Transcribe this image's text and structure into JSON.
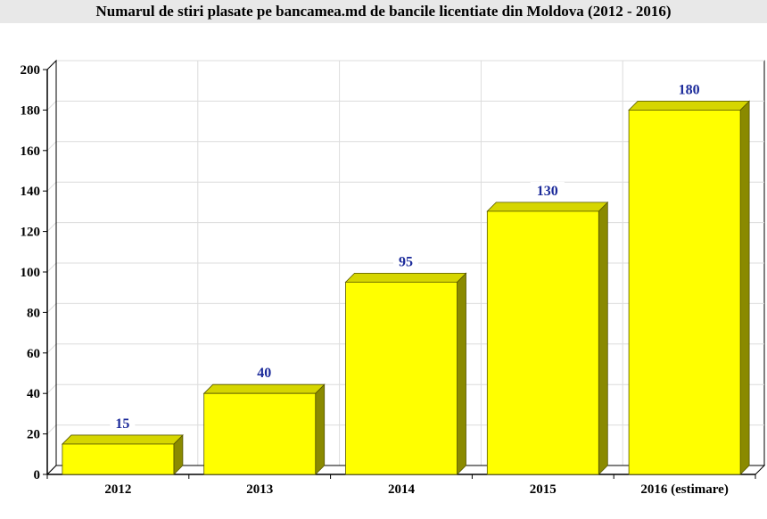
{
  "chart_data": {
    "type": "bar",
    "title": "Numarul de stiri plasate pe bancamea.md de bancile licentiate din Moldova (2012 - 2016)",
    "categories": [
      "2012",
      "2013",
      "2014",
      "2015",
      "2016 (estimare)"
    ],
    "values": [
      15,
      40,
      95,
      130,
      180
    ],
    "ylim": [
      0,
      200
    ],
    "yticks": [
      0,
      20,
      40,
      60,
      80,
      100,
      120,
      140,
      160,
      180,
      200
    ],
    "data_labels": [
      "15",
      "40",
      "95",
      "130",
      "180"
    ],
    "grid": true,
    "bar_style": "3d",
    "colors": {
      "bar_front": "#ffff00",
      "bar_top": "#d6d600",
      "bar_side": "#8a8a00",
      "label": "#1b2a9a",
      "title_bg": "#e8e8e8"
    }
  }
}
